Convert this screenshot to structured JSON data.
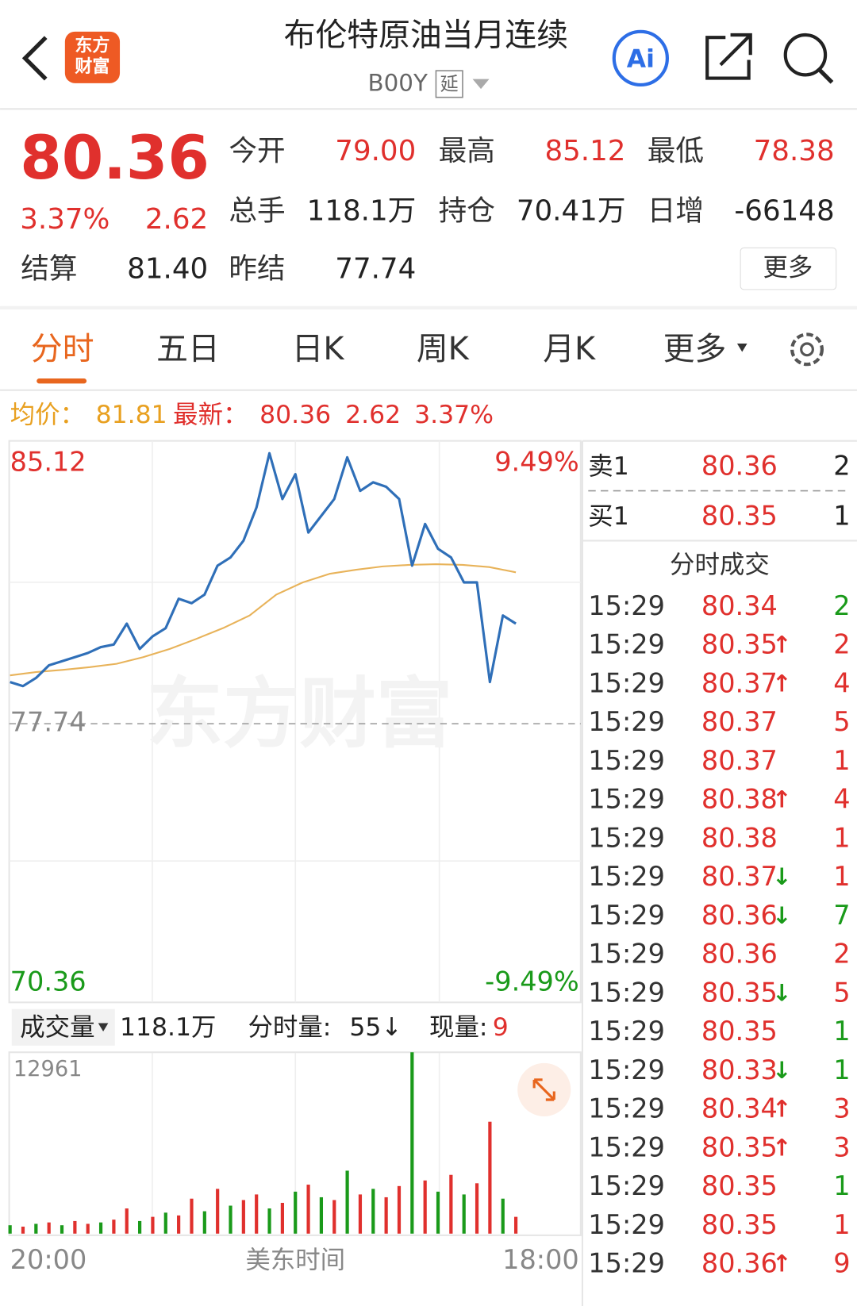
{
  "header": {
    "logo_top": "东方",
    "logo_bottom": "财富",
    "title": "布伦特原油当月连续",
    "code": "B00Y",
    "delay": "延",
    "ai": "Ai"
  },
  "quote": {
    "price": "80.36",
    "pct": "3.37%",
    "chg": "2.62",
    "fields": [
      {
        "label": "今开",
        "value": "79.00"
      },
      {
        "label": "最高",
        "value": "85.12"
      },
      {
        "label": "最低",
        "value": "78.38"
      },
      {
        "label": "总手",
        "value": "118.1万"
      },
      {
        "label": "持仓",
        "value": "70.41万"
      },
      {
        "label": "日增",
        "value": "-66148"
      },
      {
        "label": "结算",
        "value": "81.40"
      },
      {
        "label": "昨结",
        "value": "77.74"
      }
    ],
    "more": "更多"
  },
  "tabs": [
    "分时",
    "五日",
    "日K",
    "周K",
    "月K",
    "更多"
  ],
  "summary": {
    "avg_label": "均价：",
    "avg": "81.81",
    "last_label": "最新：",
    "last": "80.36",
    "chg": "2.62",
    "pct": "3.37%"
  },
  "chart": {
    "ylim": [
      70.36,
      85.12
    ],
    "top_label": "85.12",
    "bottom_label": "70.36",
    "top_pct": "9.49%",
    "bottom_pct": "-9.49%",
    "prev_close": {
      "value": 77.74,
      "label": "77.74"
    },
    "watermark": "东方财富",
    "price_color": "#2f6fb8",
    "avg_color": "#e8b35a",
    "price": [
      78.86,
      78.75,
      78.97,
      79.31,
      79.42,
      79.53,
      79.64,
      79.8,
      79.87,
      80.43,
      79.75,
      80.09,
      80.31,
      81.1,
      80.98,
      81.21,
      81.99,
      82.21,
      82.66,
      83.55,
      85.01,
      83.78,
      84.45,
      82.88,
      83.33,
      83.78,
      84.9,
      84.0,
      84.23,
      84.11,
      83.78,
      81.99,
      83.11,
      82.44,
      82.21,
      81.54,
      81.54,
      78.86,
      80.65,
      80.43
    ],
    "avg": [
      79.04,
      79.13,
      79.19,
      79.26,
      79.35,
      79.53,
      79.75,
      80.02,
      80.31,
      80.65,
      81.21,
      81.54,
      81.77,
      81.88,
      81.97,
      82.01,
      82.03,
      82.01,
      81.95,
      81.81
    ],
    "x_start": "20:00",
    "x_mid": "美东时间",
    "x_end": "18:00"
  },
  "volume": {
    "label": "成交量",
    "total": "118.1万",
    "fen_label": "分时量:",
    "fen": "55↓",
    "now_label": "现量:",
    "now": "9",
    "max": 12961,
    "values": [
      600,
      500,
      700,
      800,
      600,
      900,
      700,
      800,
      1000,
      1800,
      900,
      1200,
      1500,
      1300,
      2500,
      1600,
      3200,
      2000,
      2400,
      2800,
      1800,
      2200,
      3000,
      3500,
      2600,
      2400,
      4500,
      2800,
      3200,
      2600,
      3400,
      12961,
      3800,
      3000,
      4200,
      2800,
      3600,
      8000,
      2500,
      1200
    ],
    "colors": [
      "#1a9a1a",
      "#e0302d",
      "#1a9a1a",
      "#e0302d",
      "#1a9a1a",
      "#e0302d",
      "#e0302d",
      "#1a9a1a",
      "#e0302d",
      "#e0302d",
      "#1a9a1a",
      "#e0302d",
      "#1a9a1a",
      "#e0302d",
      "#e0302d",
      "#1a9a1a",
      "#e0302d",
      "#1a9a1a",
      "#e0302d",
      "#e0302d",
      "#1a9a1a",
      "#e0302d",
      "#1a9a1a",
      "#e0302d",
      "#1a9a1a",
      "#e0302d",
      "#1a9a1a",
      "#e0302d",
      "#1a9a1a",
      "#e0302d",
      "#e0302d",
      "#1a9a1a",
      "#e0302d",
      "#1a9a1a",
      "#e0302d",
      "#1a9a1a",
      "#e0302d",
      "#e0302d",
      "#1a9a1a",
      "#e0302d"
    ]
  },
  "orderbook": {
    "sell": {
      "label": "卖1",
      "price": "80.36",
      "qty": "2"
    },
    "buy": {
      "label": "买1",
      "price": "80.35",
      "qty": "1"
    },
    "trades_title": "分时成交",
    "trades": [
      {
        "time": "15:29",
        "price": "80.34",
        "qty": "2",
        "color": "#1a9a1a"
      },
      {
        "time": "15:29",
        "price": "80.35",
        "arrow": "↑",
        "qty": "2",
        "color": "#e0302d"
      },
      {
        "time": "15:29",
        "price": "80.37",
        "arrow": "↑",
        "qty": "4",
        "color": "#e0302d"
      },
      {
        "time": "15:29",
        "price": "80.37",
        "qty": "5",
        "color": "#e0302d"
      },
      {
        "time": "15:29",
        "price": "80.37",
        "qty": "1",
        "color": "#e0302d"
      },
      {
        "time": "15:29",
        "price": "80.38",
        "arrow": "↑",
        "qty": "4",
        "color": "#e0302d"
      },
      {
        "time": "15:29",
        "price": "80.38",
        "qty": "1",
        "color": "#e0302d"
      },
      {
        "time": "15:29",
        "price": "80.37",
        "arrow": "↓",
        "qty": "1",
        "color": "#e0302d"
      },
      {
        "time": "15:29",
        "price": "80.36",
        "arrow": "↓",
        "qty": "7",
        "color": "#1a9a1a"
      },
      {
        "time": "15:29",
        "price": "80.36",
        "qty": "2",
        "color": "#e0302d"
      },
      {
        "time": "15:29",
        "price": "80.35",
        "arrow": "↓",
        "qty": "5",
        "color": "#e0302d"
      },
      {
        "time": "15:29",
        "price": "80.35",
        "qty": "1",
        "color": "#1a9a1a"
      },
      {
        "time": "15:29",
        "price": "80.33",
        "arrow": "↓",
        "qty": "1",
        "color": "#1a9a1a"
      },
      {
        "time": "15:29",
        "price": "80.34",
        "arrow": "↑",
        "qty": "3",
        "color": "#e0302d"
      },
      {
        "time": "15:29",
        "price": "80.35",
        "arrow": "↑",
        "qty": "3",
        "color": "#e0302d"
      },
      {
        "time": "15:29",
        "price": "80.35",
        "qty": "1",
        "color": "#1a9a1a"
      },
      {
        "time": "15:29",
        "price": "80.35",
        "qty": "1",
        "color": "#e0302d"
      },
      {
        "time": "15:29",
        "price": "80.36",
        "arrow": "↑",
        "qty": "9",
        "color": "#e0302d"
      }
    ]
  }
}
